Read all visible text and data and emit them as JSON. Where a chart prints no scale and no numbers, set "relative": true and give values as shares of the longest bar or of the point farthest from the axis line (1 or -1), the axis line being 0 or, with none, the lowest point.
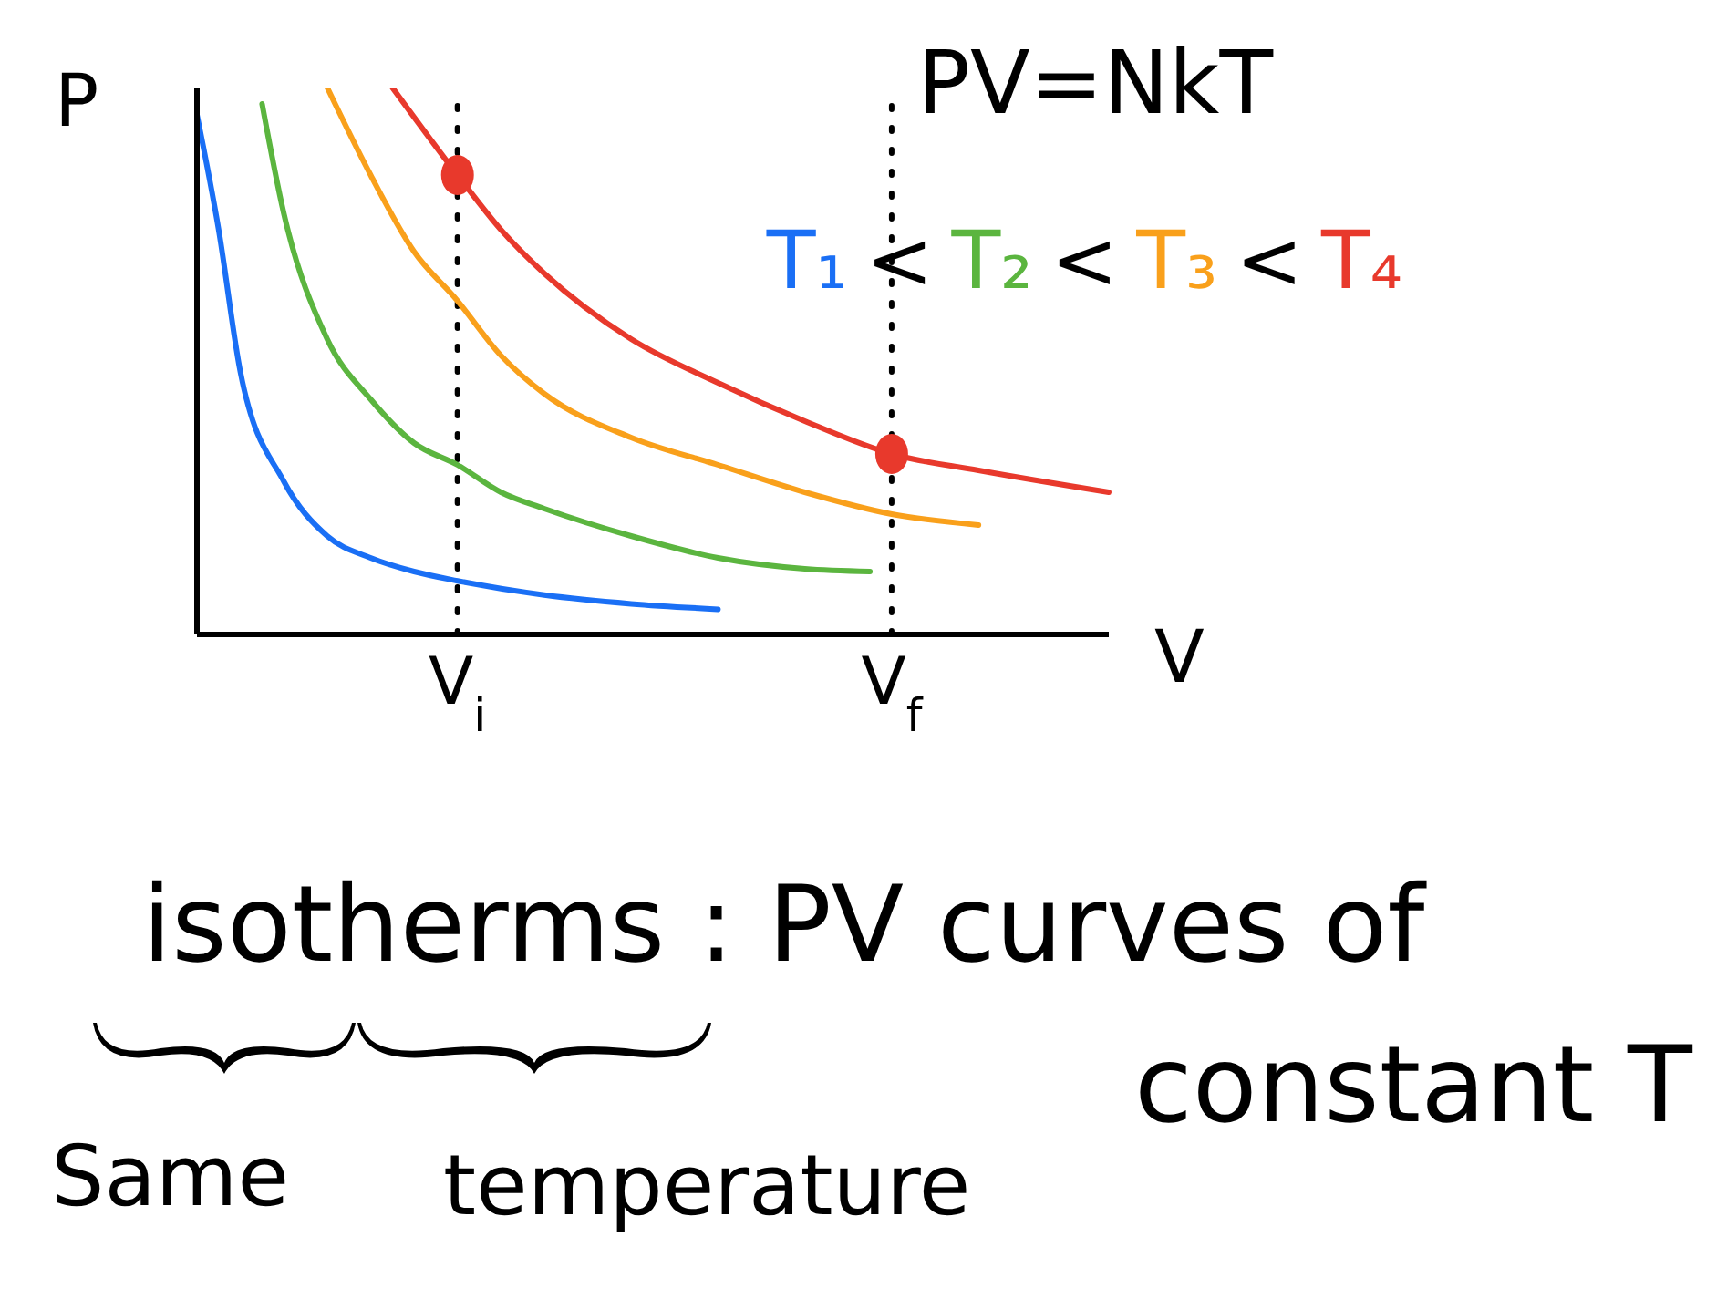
{
  "chart_data": {
    "type": "line",
    "relative": true,
    "xlabel": "V",
    "ylabel": "P",
    "categories": [
      null,
      null,
      null,
      null,
      null,
      null,
      null,
      null,
      null,
      null,
      null,
      null,
      "V$_{i}$",
      null,
      null,
      null,
      null,
      null,
      null,
      null,
      null,
      null,
      null,
      null,
      null,
      null,
      null,
      null,
      null,
      null,
      null,
      null,
      "V$_{f}$",
      null,
      null,
      null,
      null,
      null,
      null,
      null,
      null,
      null,
      null
    ],
    "series": [
      {
        "name": "T₁",
        "color": "#1a6ff5",
        "values": [
          0.95,
          0.74,
          0.48,
          null,
          0.28,
          null,
          0.18,
          null,
          0.14,
          null,
          0.115,
          null,
          0.098,
          null,
          null,
          null,
          0.072,
          null,
          null,
          null,
          0.056,
          null,
          null,
          null,
          0.046,
          null,
          null,
          null,
          null,
          null,
          null,
          null,
          null,
          null,
          null,
          null,
          null,
          null,
          null,
          null,
          null,
          null,
          null
        ]
      },
      {
        "name": "T₂",
        "color": "#5bb53f",
        "values": [
          null,
          null,
          null,
          0.97,
          0.77,
          null,
          0.54,
          null,
          0.43,
          null,
          0.35,
          null,
          0.31,
          null,
          0.26,
          null,
          0.23,
          null,
          null,
          null,
          0.18,
          null,
          null,
          null,
          0.14,
          null,
          null,
          null,
          0.12,
          null,
          null,
          0.115,
          null,
          null,
          null,
          null,
          null,
          null,
          null,
          null,
          null,
          null,
          null
        ]
      },
      {
        "name": "T₃",
        "color": "#f9a01b",
        "values": [
          null,
          null,
          null,
          null,
          null,
          null,
          1.0,
          null,
          0.84,
          null,
          0.7,
          null,
          0.61,
          null,
          0.51,
          null,
          0.44,
          null,
          null,
          null,
          0.36,
          null,
          null,
          null,
          0.31,
          null,
          null,
          null,
          0.26,
          null,
          null,
          null,
          0.22,
          null,
          null,
          null,
          0.2,
          null,
          null,
          null,
          null,
          null,
          null
        ]
      },
      {
        "name": "T₄",
        "color": "#e8392c",
        "values": [
          null,
          null,
          null,
          null,
          null,
          null,
          null,
          null,
          null,
          1.0,
          null,
          null,
          0.84,
          null,
          0.74,
          null,
          0.66,
          null,
          null,
          null,
          0.54,
          null,
          null,
          null,
          0.46,
          null,
          null,
          null,
          0.39,
          null,
          null,
          null,
          0.33,
          null,
          null,
          null,
          0.3,
          null,
          null,
          null,
          null,
          null,
          0.26
        ]
      },
      {
        "type": "scatter",
        "color": "#e8392c",
        "marker": "circle",
        "x": [
          "V$_{i}$",
          "V$_{f}$"
        ],
        "values": [
          0.84,
          0.33
        ]
      }
    ],
    "ref_lines": [
      {
        "axis": "x",
        "value": "V$_{i}$",
        "color": "#000000",
        "line_style": "dotted"
      },
      {
        "axis": "x",
        "value": "V$_{f}$",
        "color": "#000000",
        "line_style": "dotted"
      }
    ],
    "annotations": [
      "PV=NkT",
      "<",
      "isotherms : PV curves of constant T",
      "Same",
      "temperature"
    ],
    "legend": "top right",
    "grid": false,
    "marker": "none",
    "line_style": "solid"
  }
}
